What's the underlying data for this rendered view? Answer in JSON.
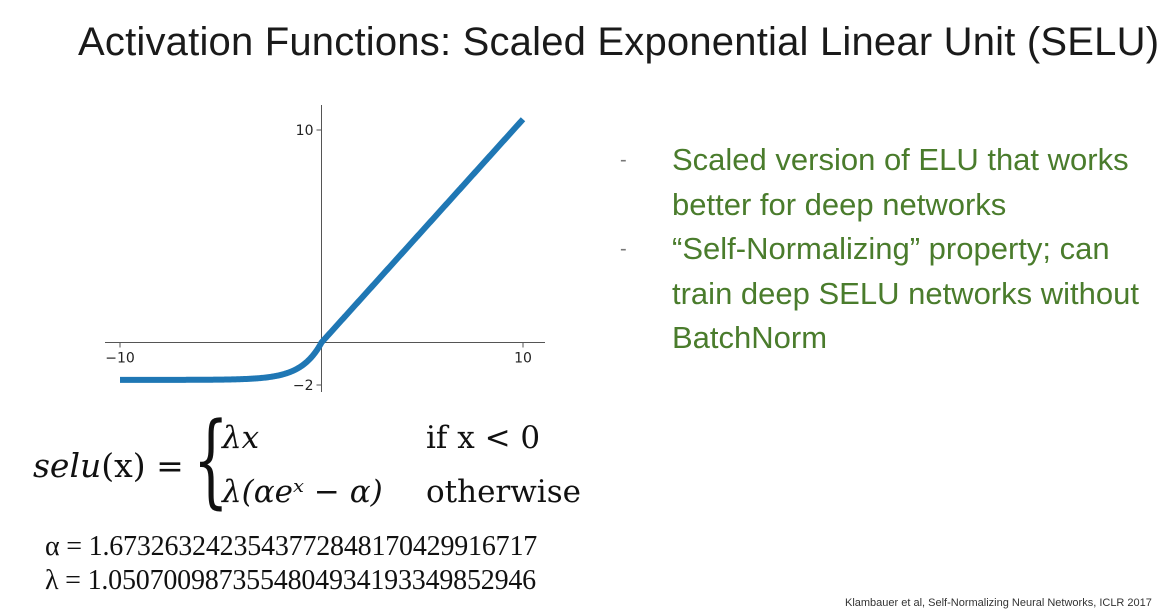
{
  "slide": {
    "title": "Activation Functions: Scaled Exponential Linear Unit (SELU)"
  },
  "bullets": [
    {
      "marker": "-",
      "text": "Scaled version of ELU that works better for deep networks"
    },
    {
      "marker": "-",
      "text": "“Self-Normalizing” property; can train deep SELU networks without BatchNorm"
    }
  ],
  "colors": {
    "curve": "#1f77b4",
    "bullet_text": "#4a7c2c",
    "axis": "#555555"
  },
  "chart_data": {
    "type": "line",
    "function": "selu",
    "xlim": [
      -10,
      10
    ],
    "ylim": [
      -2,
      10
    ],
    "xticks": [
      {
        "value": -10,
        "label": "−10"
      },
      {
        "value": 10,
        "label": "10"
      }
    ],
    "yticks": [
      {
        "value": -2,
        "label": "−2"
      },
      {
        "value": 10,
        "label": "10"
      }
    ],
    "lambda": 1.0507009873554805,
    "alpha": 1.6732632423543772,
    "title": "",
    "xlabel": "",
    "ylabel": "",
    "grid": false
  },
  "formula": {
    "lhs_name": "selu",
    "lhs_arg": "(x) =",
    "case1_expr": "λx",
    "case1_cond": "if x < 0",
    "case2_expr": "λ(αeˣ − α)",
    "case2_cond": "otherwise"
  },
  "constants": {
    "alpha_line": "α = 1.6732632423543772848170429916717",
    "lambda_line": "λ = 1.0507009873554804934193349852946"
  },
  "citation": "Klambauer et al, Self-Normalizing Neural Networks, ICLR 2017"
}
